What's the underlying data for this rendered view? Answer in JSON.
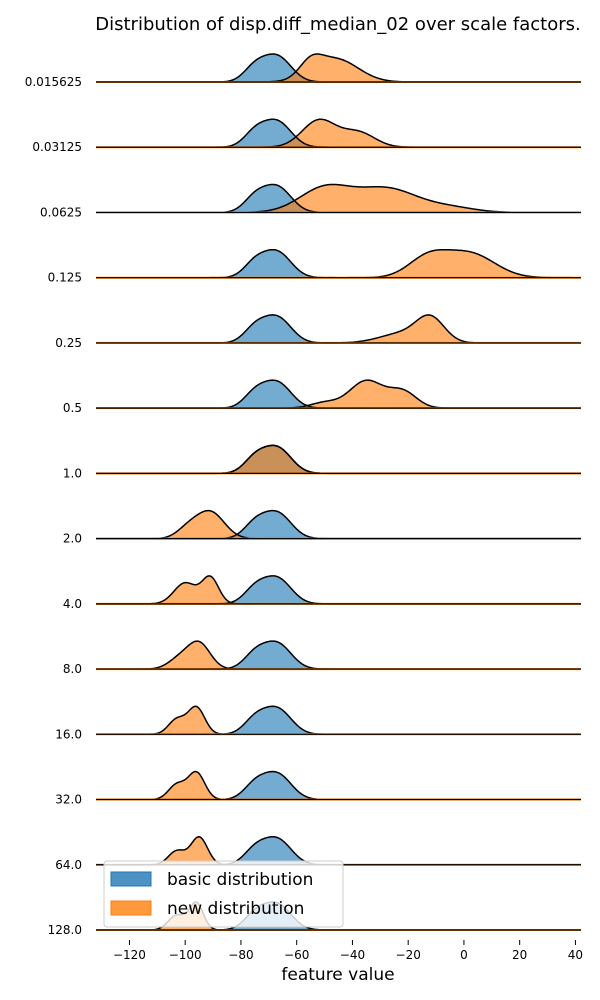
{
  "chart_data": {
    "type": "area",
    "title": "Distribution of disp.diff_median_02 over scale factors.",
    "xlabel": "feature value",
    "ylabel": "",
    "xlim": [
      -132,
      42
    ],
    "xticks": [
      -120,
      -100,
      -80,
      -60,
      -40,
      -20,
      0,
      20,
      40
    ],
    "xtick_labels": [
      "−120",
      "−100",
      "−80",
      "−60",
      "−40",
      "−20",
      "0",
      "20",
      "40"
    ],
    "grid": false,
    "legend_position": "bottom-left",
    "colors": {
      "basic": "#1f77b4",
      "new": "#ff7f0e",
      "outline": "#000000"
    },
    "series": [
      {
        "name": "basic distribution",
        "color": "#1f77b4"
      },
      {
        "name": "new distribution",
        "color": "#ff7f0e"
      }
    ],
    "categories": [
      "0.015625",
      "0.03125",
      "0.0625",
      "0.125",
      "0.25",
      "0.5",
      "1.0",
      "2.0",
      "4.0",
      "8.0",
      "16.0",
      "32.0",
      "64.0",
      "128.0"
    ],
    "rows": [
      {
        "label": "0.015625",
        "basic": [
          [
            -75,
            4,
            0.55
          ],
          [
            -67,
            5,
            1.0
          ]
        ],
        "new": [
          [
            -55,
            4,
            0.6
          ],
          [
            -46,
            8,
            1.0
          ]
        ]
      },
      {
        "label": "0.03125",
        "basic": [
          [
            -75,
            4,
            0.55
          ],
          [
            -67,
            5,
            1.0
          ]
        ],
        "new": [
          [
            -52,
            6,
            1.0
          ],
          [
            -38,
            6,
            0.55
          ]
        ]
      },
      {
        "label": "0.0625",
        "basic": [
          [
            -75,
            4,
            0.55
          ],
          [
            -67,
            5,
            1.0
          ]
        ],
        "new": [
          [
            -50,
            9,
            0.75
          ],
          [
            -28,
            11,
            0.75
          ],
          [
            -5,
            9,
            0.15
          ]
        ]
      },
      {
        "label": "0.125",
        "basic": [
          [
            -75,
            4,
            0.55
          ],
          [
            -67,
            5,
            1.0
          ]
        ],
        "new": [
          [
            -13,
            7,
            0.6
          ],
          [
            2,
            9,
            0.75
          ]
        ]
      },
      {
        "label": "0.25",
        "basic": [
          [
            -75,
            4,
            0.55
          ],
          [
            -67,
            5,
            1.0
          ]
        ],
        "new": [
          [
            -22,
            8,
            0.35
          ],
          [
            -12,
            5,
            0.85
          ]
        ]
      },
      {
        "label": "0.5",
        "basic": [
          [
            -75,
            4,
            0.55
          ],
          [
            -67,
            5,
            1.0
          ]
        ],
        "new": [
          [
            -50,
            5,
            0.15
          ],
          [
            -35,
            6,
            0.75
          ],
          [
            -22,
            5,
            0.45
          ]
        ]
      },
      {
        "label": "1.0",
        "basic": [
          [
            -75,
            4,
            0.55
          ],
          [
            -67,
            5,
            1.0
          ]
        ],
        "new": [
          [
            -75,
            4,
            0.55
          ],
          [
            -67,
            5,
            1.0
          ]
        ]
      },
      {
        "label": "2.0",
        "basic": [
          [
            -75,
            4,
            0.55
          ],
          [
            -67,
            5,
            1.0
          ]
        ],
        "new": [
          [
            -99,
            4,
            0.35
          ],
          [
            -91,
            5,
            1.0
          ]
        ]
      },
      {
        "label": "4.0",
        "basic": [
          [
            -75,
            4,
            0.55
          ],
          [
            -67,
            5,
            1.0
          ]
        ],
        "new": [
          [
            -100,
            4,
            0.8
          ],
          [
            -91,
            3,
            1.0
          ]
        ]
      },
      {
        "label": "8.0",
        "basic": [
          [
            -75,
            4,
            0.55
          ],
          [
            -67,
            5,
            1.0
          ]
        ],
        "new": [
          [
            -102,
            4,
            0.4
          ],
          [
            -95,
            4,
            1.0
          ]
        ]
      },
      {
        "label": "16.0",
        "basic": [
          [
            -75,
            4,
            0.55
          ],
          [
            -67,
            5,
            1.0
          ]
        ],
        "new": [
          [
            -103,
            3,
            0.55
          ],
          [
            -96,
            3,
            1.0
          ]
        ]
      },
      {
        "label": "32.0",
        "basic": [
          [
            -75,
            4,
            0.55
          ],
          [
            -67,
            5,
            1.0
          ]
        ],
        "new": [
          [
            -103,
            3,
            0.55
          ],
          [
            -96,
            3,
            1.0
          ]
        ]
      },
      {
        "label": "64.0",
        "basic": [
          [
            -75,
            4,
            0.55
          ],
          [
            -67,
            5,
            1.0
          ]
        ],
        "new": [
          [
            -103,
            3,
            0.5
          ],
          [
            -95,
            3,
            1.0
          ]
        ]
      },
      {
        "label": "128.0",
        "basic": [
          [
            -75,
            4,
            0.55
          ],
          [
            -67,
            5,
            1.0
          ]
        ],
        "new": [
          [
            -103,
            3,
            0.55
          ],
          [
            -96,
            2.5,
            1.0
          ]
        ]
      }
    ]
  }
}
